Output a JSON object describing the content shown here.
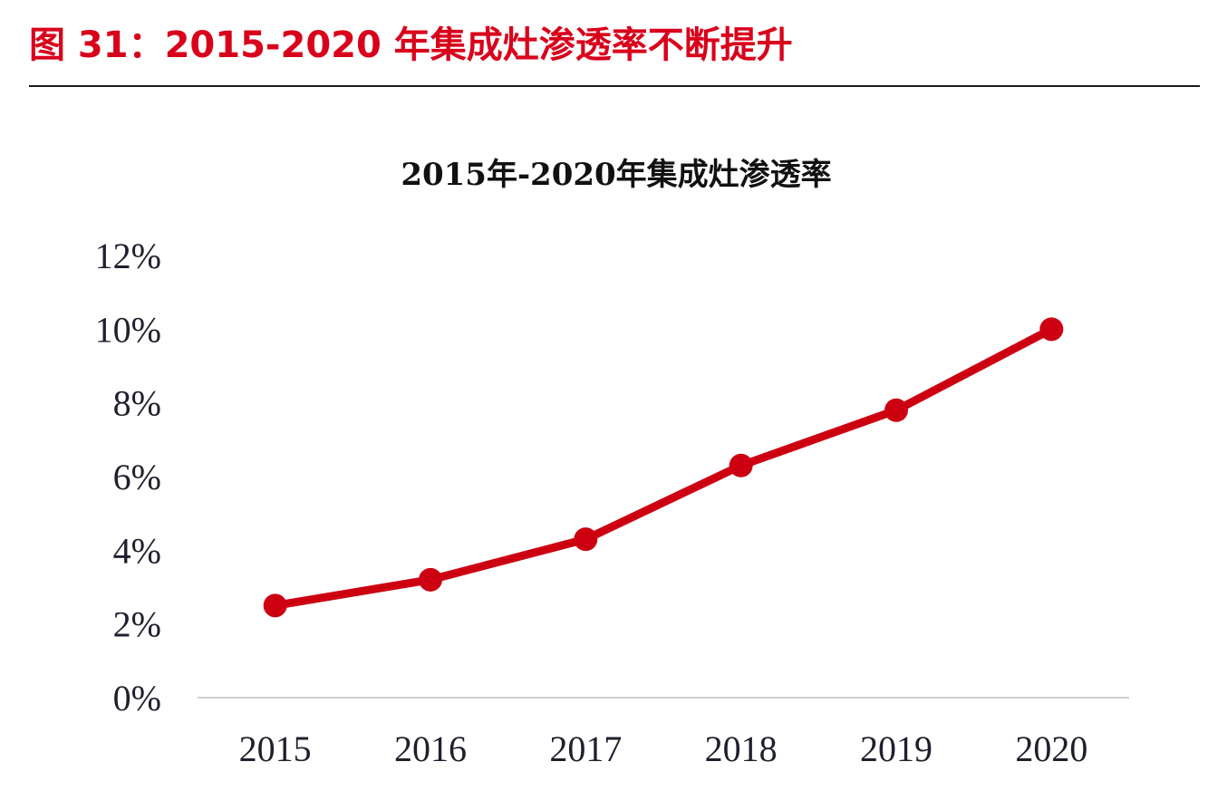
{
  "figure": {
    "title": "图 31：2015-2020 年集成灶渗透率不断提升"
  },
  "colors": {
    "accent": "#d9001b",
    "line": "#cc0011",
    "axis": "#d0d0d0",
    "text": "#1f1f2e"
  },
  "chart_data": {
    "type": "line",
    "title": "2015年-2020年集成灶渗透率",
    "xlabel": "",
    "ylabel": "",
    "categories": [
      "2015",
      "2016",
      "2017",
      "2018",
      "2019",
      "2020"
    ],
    "series": [
      {
        "values": [
          2.5,
          3.2,
          4.3,
          6.3,
          7.8,
          10.0
        ]
      }
    ],
    "ylim": [
      0,
      12
    ],
    "y_ticks": [
      0,
      2,
      4,
      6,
      8,
      10,
      12
    ],
    "y_tick_labels": [
      "0%",
      "2%",
      "4%",
      "6%",
      "8%",
      "10%",
      "12%"
    ],
    "grid": false,
    "legend": "none"
  }
}
